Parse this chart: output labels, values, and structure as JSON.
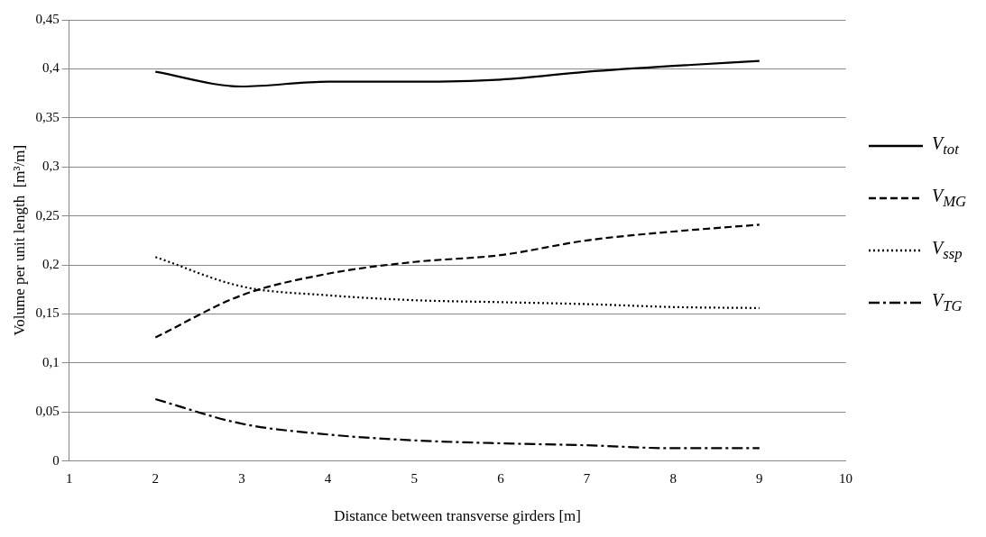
{
  "chart_data": {
    "type": "line",
    "xlabel": "Distance between transverse girders [m]",
    "ylabel": "Volume per unit length  [m³/m]",
    "x": [
      2,
      3,
      4,
      5,
      6,
      7,
      8,
      9
    ],
    "series": [
      {
        "name": "V$_{tot}$",
        "color": "#000000",
        "line_style": "solid",
        "values": [
          0.397,
          0.382,
          0.387,
          0.387,
          0.389,
          0.397,
          0.403,
          0.408
        ]
      },
      {
        "name": "V$_{MG}$",
        "color": "#000000",
        "line_style": "dashed",
        "values": [
          0.126,
          0.169,
          0.191,
          0.203,
          0.21,
          0.225,
          0.234,
          0.241
        ]
      },
      {
        "name": "V$_{ssp}$",
        "color": "#000000",
        "line_style": "dotted",
        "values": [
          0.208,
          0.178,
          0.169,
          0.164,
          0.162,
          0.16,
          0.157,
          0.156
        ]
      },
      {
        "name": "V$_{TG}$",
        "color": "#000000",
        "line_style": "dashdot",
        "values": [
          0.063,
          0.038,
          0.027,
          0.021,
          0.018,
          0.016,
          0.013,
          0.013
        ]
      }
    ],
    "xlim": [
      1,
      10
    ],
    "xticks": [
      1,
      2,
      3,
      4,
      5,
      6,
      7,
      8,
      9,
      10
    ],
    "ylim": [
      0,
      0.45
    ],
    "yticks": [
      0,
      {
        "value": 0.05,
        "label": "0,05"
      },
      {
        "value": 0.1,
        "label": "0,1"
      },
      {
        "value": 0.15,
        "label": "0,15"
      },
      {
        "value": 0.2,
        "label": "0,2"
      },
      {
        "value": 0.25,
        "label": "0,25"
      },
      {
        "value": 0.3,
        "label": "0,3"
      },
      {
        "value": 0.35,
        "label": "0,35"
      },
      {
        "value": 0.4,
        "label": "0,4"
      },
      {
        "value": 0.45,
        "label": "0,45"
      }
    ],
    "grid": "y",
    "legend": "right",
    "marker": "none"
  }
}
